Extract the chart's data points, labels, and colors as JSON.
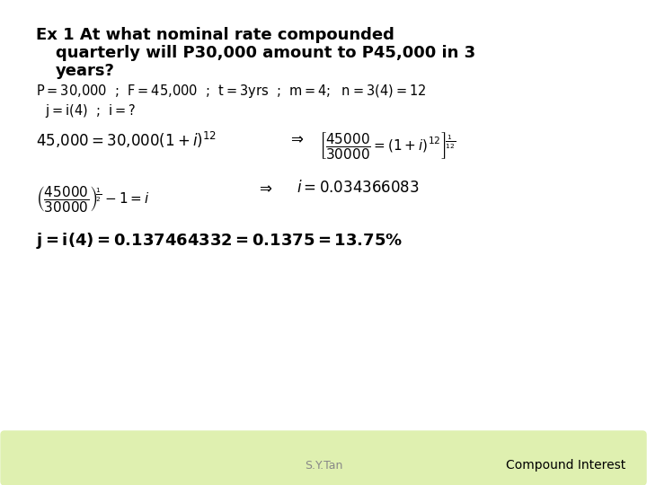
{
  "title_line1": "Ex 1 At what nominal rate compounded",
  "title_line2": "quarterly will P30,000 amount to P45,000 in 3",
  "title_line3": "years?",
  "footer_left": "S.Y.Tan",
  "footer_right": "Compound Interest",
  "bg_color": "#ffffff",
  "footer_bg_top": "#e8f5c8",
  "footer_bg_bot": "#d0e8a0",
  "title_color": "#000000",
  "body_color": "#000000",
  "footer_text_color": "#888888",
  "footer_right_color": "#000000",
  "title_fontsize": 13,
  "body_fontsize": 10.5,
  "eq1_fontsize": 12,
  "eq_final_fontsize": 13
}
